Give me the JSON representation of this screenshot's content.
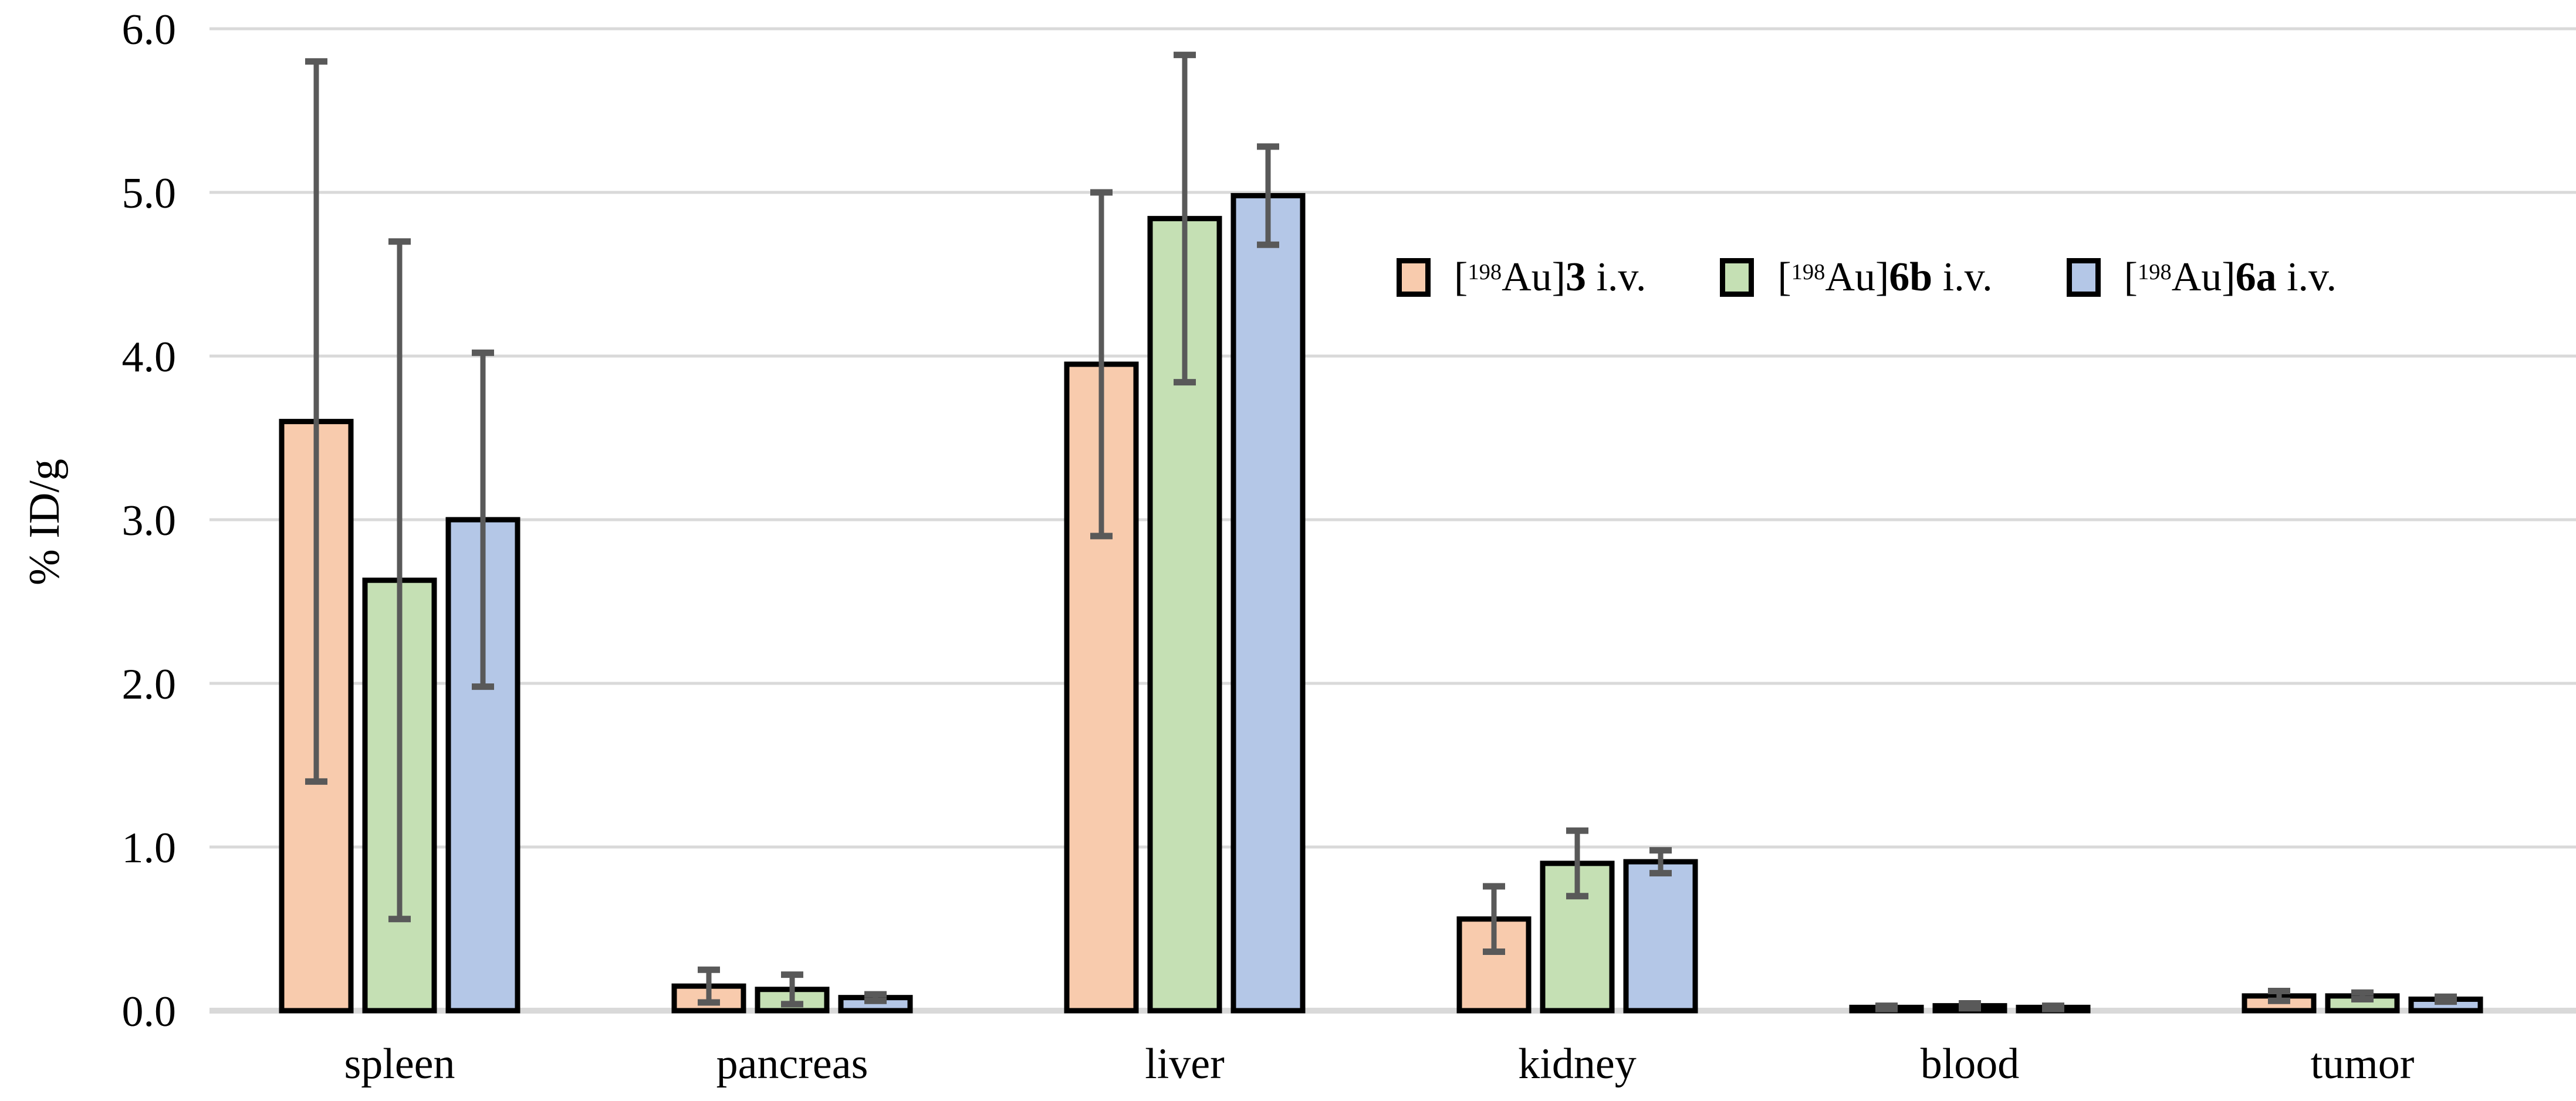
{
  "chart_data": {
    "type": "bar",
    "title": "",
    "xlabel": "",
    "ylabel": "% ID/g",
    "ylim": [
      0,
      6
    ],
    "y_tick_labels": [
      "6.0",
      "5.0",
      "4.0",
      "3.0",
      "2.0",
      "1.0",
      "0.0"
    ],
    "grid": "horizontal-on",
    "legend_position": "inside-upper-right",
    "categories": [
      "spleen",
      "pancreas",
      "liver",
      "kidney",
      "blood",
      "tumor"
    ],
    "series": [
      {
        "name": "[198Au]3 i.v.",
        "label_parts": {
          "bracket": "[",
          "isotope": "198",
          "element": "Au]",
          "compound": "3",
          "suffix": " i.v."
        },
        "fill": "#F8CBAD",
        "values": [
          3.6,
          0.15,
          3.95,
          0.56,
          0.02,
          0.09
        ],
        "errors": [
          2.2,
          0.1,
          1.05,
          0.2,
          0.01,
          0.03
        ]
      },
      {
        "name": "[198Au]6b i.v.",
        "label_parts": {
          "bracket": "[",
          "isotope": "198",
          "element": "Au]",
          "compound": "6b",
          "suffix": " i.v."
        },
        "fill": "#C5E0B4",
        "values": [
          2.63,
          0.13,
          4.84,
          0.9,
          0.03,
          0.09
        ],
        "errors": [
          2.07,
          0.09,
          1.0,
          0.2,
          0.015,
          0.02
        ]
      },
      {
        "name": "[198Au]6a i.v.",
        "label_parts": {
          "bracket": "[",
          "isotope": "198",
          "element": "Au]",
          "compound": "6a",
          "suffix": " i.v."
        },
        "fill": "#B4C7E7",
        "values": [
          3.0,
          0.08,
          4.98,
          0.91,
          0.02,
          0.07
        ],
        "errors": [
          1.02,
          0.02,
          0.3,
          0.07,
          0.01,
          0.015
        ]
      }
    ],
    "colors": {
      "bar_border": "#000000",
      "error_bar": "#595959",
      "gridline": "#D9D9D9",
      "baseline": "#D9D9D9",
      "axis_text": "#000000"
    }
  }
}
